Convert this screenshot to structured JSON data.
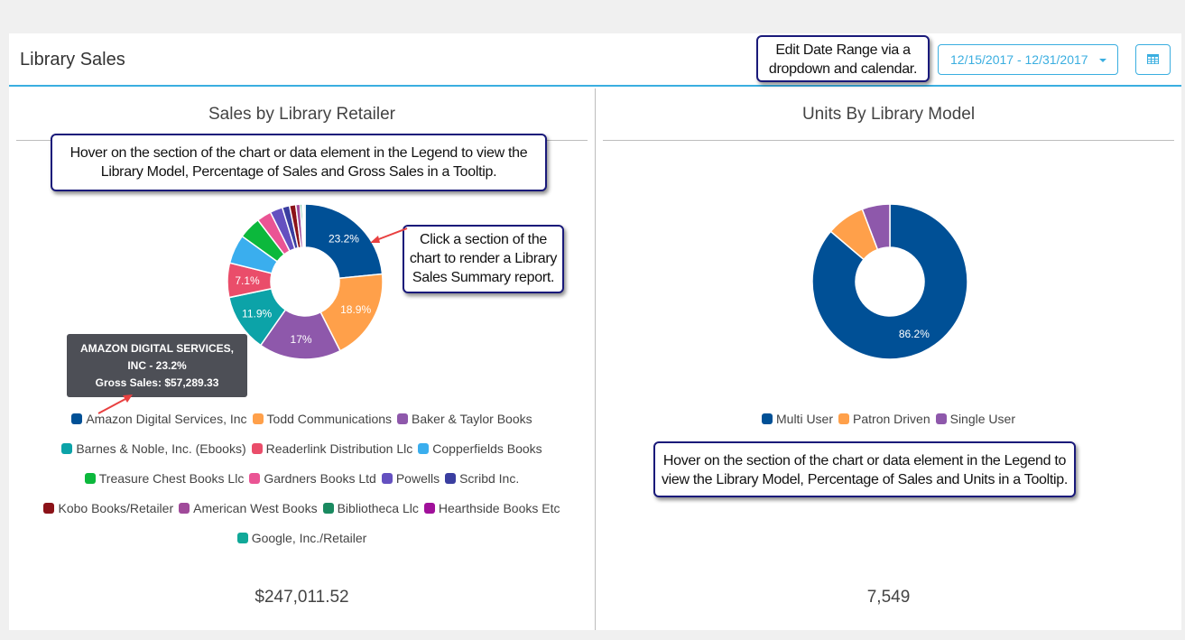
{
  "header": {
    "title": "Library Sales",
    "date_range": "12/15/2017 - 12/31/2017",
    "calendar_icon": "calendar-grid-icon"
  },
  "callouts": {
    "date_range": "Edit Date Range via a dropdown and calendar.",
    "date_range_lines": [
      "Edit Date Range via a",
      "dropdown and calendar."
    ],
    "left_hover_lines": [
      "Hover on the section of the chart or data element in the Legend to view the",
      "Library Model, Percentage of Sales and Gross Sales in a Tooltip."
    ],
    "click_lines": [
      "Click a section of the",
      "chart to render a Library",
      "Sales Summary report."
    ],
    "right_hover_lines": [
      "Hover on the section of the chart or data element in the Legend to",
      "view the Library Model, Percentage of Sales and Units in a Tooltip."
    ]
  },
  "tooltip": {
    "line1": "AMAZON DIGITAL SERVICES,",
    "line2": "INC - 23.2%",
    "line3": "Gross Sales: $57,289.33"
  },
  "left_chart": {
    "title": "Sales by Library Retailer",
    "total": "$247,011.52"
  },
  "right_chart": {
    "title": "Units By Library Model",
    "total": "7,549"
  },
  "chart_data": [
    {
      "type": "pie",
      "title": "Sales by Library Retailer",
      "donut": true,
      "categories": [
        "Amazon Digital Services, Inc",
        "Todd Communications",
        "Baker & Taylor Books",
        "Barnes & Noble, Inc. (Ebooks)",
        "Readerlink Distribution Llc",
        "Copperfields Books",
        "Treasure Chest Books Llc",
        "Gardners Books Ltd",
        "Powells",
        "Scribd Inc.",
        "Kobo Books/Retailer",
        "American West Books",
        "Bibliotheca Llc",
        "Hearthside Books Etc",
        "Google, Inc./Retailer"
      ],
      "values": [
        23.2,
        18.9,
        17.0,
        11.9,
        7.1,
        6.0,
        4.6,
        3.0,
        2.6,
        1.5,
        1.3,
        0.9,
        0.4,
        0.3,
        0.3
      ],
      "labels_shown": [
        "23.2%",
        "18.9%",
        "17%",
        "11.9%",
        "7.1%"
      ],
      "colors": [
        "#005096",
        "#ffa04a",
        "#8e58ab",
        "#0ca3a8",
        "#ea4d6a",
        "#3aaeee",
        "#0cb83c",
        "#ea5494",
        "#6450c0",
        "#3a3ea0",
        "#8b1218",
        "#a04a9a",
        "#1a8a60",
        "#a0109a",
        "#10a898"
      ],
      "total": "$247,011.52",
      "legend_position": "bottom"
    },
    {
      "type": "pie",
      "title": "Units By Library Model",
      "donut": true,
      "categories": [
        "Multi User",
        "Patron Driven",
        "Single User"
      ],
      "values": [
        86.2,
        8.0,
        5.8
      ],
      "labels_shown": [
        "86.2%"
      ],
      "colors": [
        "#005096",
        "#ffa04a",
        "#8e58ab"
      ],
      "total": "7,549",
      "legend_position": "bottom"
    }
  ]
}
